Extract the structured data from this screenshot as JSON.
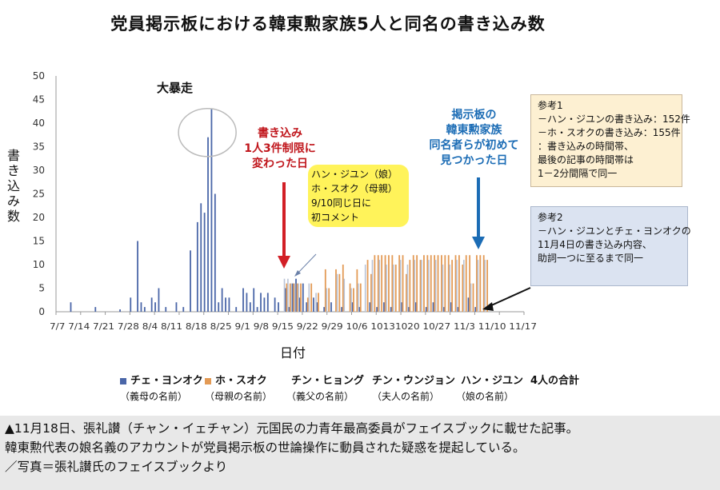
{
  "title": "党員掲示板における韓東勲家族5人と同名の書き込み数",
  "ylabel_chars": [
    "書",
    "き",
    "込",
    "み",
    "数"
  ],
  "xlabel": "日付",
  "annotations": {
    "bousou": "大暴走",
    "red": [
      "書き込み",
      "1人3件制限に",
      "変わった日"
    ],
    "blue": [
      "掲示板の",
      "韓東勲家族",
      "同名者らが初めて",
      "見つかった日"
    ],
    "yellow": [
      "ハン・ジユン（娘）",
      "ホ・スオク（母親）",
      "9/10同じ日に",
      "初コメント"
    ]
  },
  "note1": {
    "title": "参考1",
    "lines": [
      "－ハン・ジユンの書き込み：152件",
      "－ホ・スオクの書き込み：155件",
      "：書き込みの時間帯、",
      "最後の記事の時間帯は",
      "1－2分間隔で同一"
    ]
  },
  "note2": {
    "title": "参考2",
    "lines": [
      "－ハン・ジユンとチェ・ヨンオクの",
      "11月4日の書き込み内容、",
      "助詞一つに至るまで同一"
    ]
  },
  "legend": [
    {
      "name": "チェ・ヨンオク",
      "sub": "（義母の名前）",
      "color": "#4a66a8"
    },
    {
      "name": "ホ・スオク",
      "sub": "（母親の名前）",
      "color": "#e39a55"
    },
    {
      "name": "チン・ヒョング",
      "sub": "（義父の名前）",
      "color": ""
    },
    {
      "name": "チン・ウンジョン",
      "sub": "（夫人の名前）",
      "color": ""
    },
    {
      "name": "ハン・ジユン",
      "sub": "（娘の名前）",
      "color": ""
    },
    {
      "name": "4人の合計",
      "sub": "",
      "color": ""
    }
  ],
  "caption": [
    "▲11月18日、張礼讃（チャン・イェチャン）元国民の力青年最高委員がフェイスブックに載せた記事。",
    "韓東勲代表の娘名義のアカウントが党員掲示板の世論操作に動員された疑惑を提起している。",
    "／写真＝張礼讃氏のフェイスブックより"
  ],
  "colors": {
    "blue": "#4a66a8",
    "orange": "#e39a55",
    "gray": "#b9c3d6",
    "axis": "#999999",
    "red": "#d21f26",
    "darkblue": "#1b6cb5"
  },
  "chart_data": {
    "type": "bar",
    "ylim": [
      0,
      50
    ],
    "yticks": [
      0,
      5,
      10,
      15,
      20,
      25,
      30,
      35,
      40,
      45,
      50
    ],
    "xticks": [
      "7/7",
      "7/14",
      "7/21",
      "7/28",
      "8/4",
      "8/11",
      "8/18",
      "8/25",
      "9/1",
      "9/8",
      "9/15",
      "9/22",
      "9/29",
      "10/6",
      "10/13",
      "10/20",
      "10/27",
      "11/3",
      "11/10",
      "11/17"
    ],
    "xtick_text": "7/7 7/14 7/21 7/28 8/4 8/11 8/18 8/25 9/1 9/8 9/15 9/22 9/29 10/6 10131020 10/27 11/3 11/10 11/17",
    "start_date": "7/7",
    "series": [
      {
        "name": "チェ・ヨンオク",
        "points": [
          [
            4,
            2
          ],
          [
            11,
            1
          ],
          [
            18,
            0.5
          ],
          [
            21,
            3
          ],
          [
            23,
            15
          ],
          [
            24,
            2
          ],
          [
            25,
            1
          ],
          [
            27,
            3
          ],
          [
            28,
            2
          ],
          [
            29,
            5
          ],
          [
            31,
            1
          ],
          [
            34,
            2
          ],
          [
            36,
            1
          ],
          [
            38,
            13
          ],
          [
            40,
            19
          ],
          [
            41,
            23
          ],
          [
            42,
            21
          ],
          [
            43,
            37
          ],
          [
            44,
            43
          ],
          [
            45,
            25
          ],
          [
            46,
            2
          ],
          [
            47,
            5
          ],
          [
            48,
            3
          ],
          [
            49,
            3
          ],
          [
            51,
            1
          ],
          [
            53,
            5
          ],
          [
            54,
            4
          ],
          [
            55,
            2
          ],
          [
            56,
            5
          ],
          [
            57,
            1
          ],
          [
            58,
            4
          ],
          [
            59,
            3
          ],
          [
            60,
            4
          ],
          [
            62,
            3
          ],
          [
            63,
            2
          ],
          [
            65,
            5
          ],
          [
            66,
            1
          ],
          [
            67,
            6
          ],
          [
            68,
            7
          ],
          [
            69,
            3
          ],
          [
            70,
            6
          ],
          [
            71,
            2
          ],
          [
            73,
            3
          ],
          [
            74,
            2
          ],
          [
            76,
            1
          ],
          [
            78,
            2
          ],
          [
            81,
            1
          ],
          [
            84,
            2
          ],
          [
            86,
            1
          ],
          [
            89,
            2
          ],
          [
            91,
            1
          ],
          [
            93,
            2
          ],
          [
            95,
            1
          ],
          [
            98,
            2
          ],
          [
            100,
            1
          ],
          [
            102,
            2
          ],
          [
            105,
            1
          ],
          [
            107,
            2
          ],
          [
            110,
            1
          ],
          [
            112,
            2
          ],
          [
            114,
            1
          ],
          [
            117,
            3
          ],
          [
            119,
            1
          ]
        ]
      },
      {
        "name": "ホ・スオク",
        "points": [
          [
            65,
            6
          ],
          [
            66,
            6
          ],
          [
            67,
            6
          ],
          [
            68,
            6
          ],
          [
            69,
            6
          ],
          [
            71,
            3
          ],
          [
            72,
            6
          ],
          [
            74,
            4
          ],
          [
            76,
            9
          ],
          [
            77,
            5
          ],
          [
            79,
            9
          ],
          [
            80,
            8
          ],
          [
            81,
            10
          ],
          [
            83,
            6
          ],
          [
            84,
            5
          ],
          [
            85,
            9
          ],
          [
            86,
            6
          ],
          [
            88,
            11
          ],
          [
            89,
            8
          ],
          [
            90,
            12
          ],
          [
            91,
            12
          ],
          [
            92,
            12
          ],
          [
            93,
            12
          ],
          [
            94,
            12
          ],
          [
            95,
            12
          ],
          [
            96,
            10
          ],
          [
            97,
            12
          ],
          [
            98,
            12
          ],
          [
            99,
            8
          ],
          [
            100,
            11
          ],
          [
            101,
            12
          ],
          [
            102,
            12
          ],
          [
            103,
            11
          ],
          [
            104,
            12
          ],
          [
            105,
            12
          ],
          [
            106,
            12
          ],
          [
            107,
            12
          ],
          [
            108,
            12
          ],
          [
            109,
            12
          ],
          [
            110,
            12
          ],
          [
            111,
            12
          ],
          [
            112,
            11
          ],
          [
            113,
            12
          ],
          [
            114,
            12
          ],
          [
            115,
            10
          ],
          [
            116,
            12
          ],
          [
            117,
            12
          ],
          [
            118,
            6
          ],
          [
            119,
            12
          ],
          [
            120,
            12
          ],
          [
            121,
            12
          ],
          [
            122,
            11
          ]
        ]
      },
      {
        "name": "ハン・ジユン",
        "points": [
          [
            65,
            7
          ],
          [
            66,
            7
          ],
          [
            67,
            6
          ],
          [
            68,
            6
          ],
          [
            69,
            6
          ],
          [
            72,
            6
          ],
          [
            74,
            4
          ],
          [
            77,
            5
          ],
          [
            80,
            8
          ],
          [
            82,
            7
          ],
          [
            84,
            5
          ],
          [
            86,
            6
          ],
          [
            88,
            10
          ],
          [
            90,
            11
          ],
          [
            92,
            11
          ],
          [
            94,
            10
          ],
          [
            96,
            10
          ],
          [
            98,
            11
          ],
          [
            100,
            10
          ],
          [
            102,
            11
          ],
          [
            104,
            11
          ],
          [
            106,
            11
          ],
          [
            108,
            11
          ],
          [
            110,
            10
          ],
          [
            112,
            10
          ],
          [
            114,
            11
          ],
          [
            116,
            11
          ],
          [
            118,
            6
          ],
          [
            120,
            11
          ],
          [
            122,
            11
          ]
        ]
      }
    ]
  }
}
